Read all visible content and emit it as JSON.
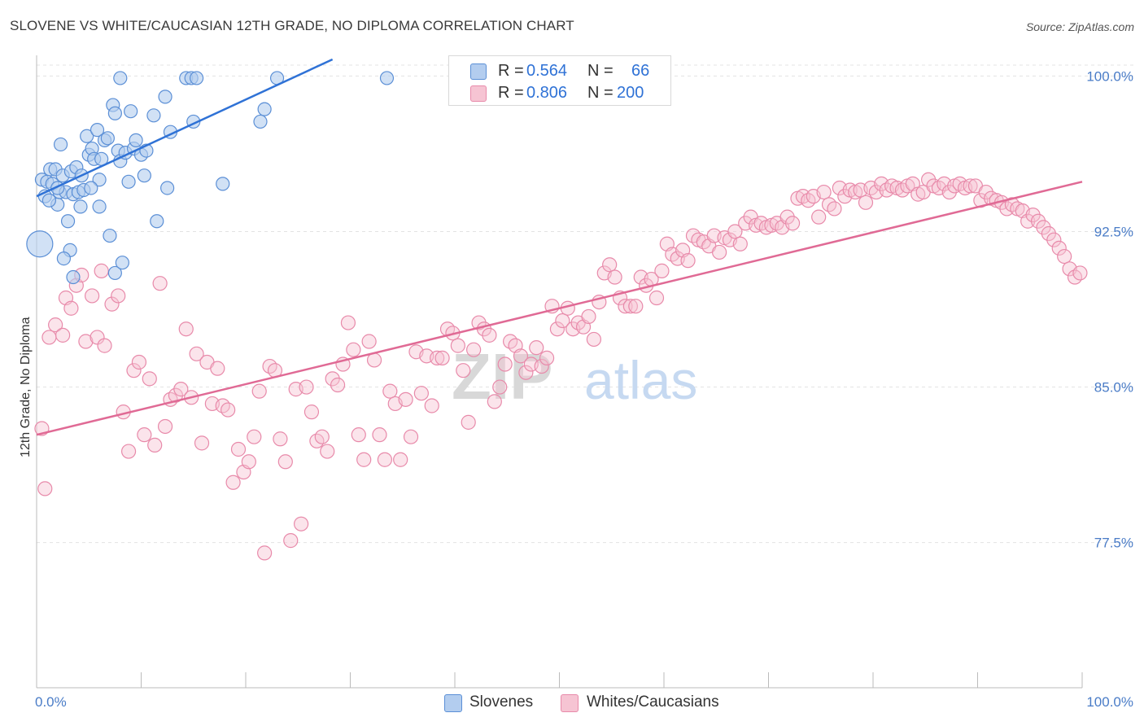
{
  "title": "SLOVENE VS WHITE/CAUCASIAN 12TH GRADE, NO DIPLOMA CORRELATION CHART",
  "source": "Source: ZipAtlas.com",
  "colors": {
    "blue_fill": "#b3cdef",
    "blue_stroke": "#5b8fd6",
    "blue_line": "#2f72d6",
    "pink_fill": "#f6c4d3",
    "pink_stroke": "#e88aaa",
    "pink_line": "#e06a95",
    "tick_label": "#4a7cc7",
    "grid": "#e3e3e3"
  },
  "legend": {
    "row1": {
      "r_label": "R = ",
      "r_value": "0.564",
      "n_label": "N = ",
      "n_value": "66"
    },
    "row2": {
      "r_label": "R = ",
      "r_value": "0.806",
      "n_label": "N = ",
      "n_value": "200"
    }
  },
  "bottom_legend": {
    "series1": "Slovenes",
    "series2": "Whites/Caucasians"
  },
  "watermark": {
    "part1": "ZIP",
    "part2": "atlas"
  },
  "chart_data": {
    "type": "scatter",
    "title": "SLOVENE VS WHITE/CAUCASIAN 12TH GRADE, NO DIPLOMA CORRELATION CHART",
    "xlabel": "",
    "ylabel": "12th Grade, No Diploma",
    "xlim": [
      0,
      100
    ],
    "ylim": [
      70.5,
      100.8
    ],
    "x_tick_labels": [
      "0.0%",
      "100.0%"
    ],
    "y_ticks": [
      77.5,
      85.0,
      92.5,
      100.0
    ],
    "y_tick_labels": [
      "77.5%",
      "85.0%",
      "92.5%",
      "100.0%"
    ],
    "grid": true,
    "legend_position": "top-center",
    "series": [
      {
        "name": "Slovenes",
        "r": 0.564,
        "n": 66,
        "trend": {
          "x": [
            0,
            28.3
          ],
          "y": [
            94.2,
            100.8
          ]
        },
        "points": [
          [
            0.5,
            95.0
          ],
          [
            0.8,
            94.2
          ],
          [
            1.0,
            94.9
          ],
          [
            1.3,
            95.5
          ],
          [
            1.5,
            94.8
          ],
          [
            1.8,
            95.5
          ],
          [
            2.0,
            93.8
          ],
          [
            2.2,
            94.4
          ],
          [
            2.3,
            96.7
          ],
          [
            2.5,
            95.2
          ],
          [
            2.8,
            94.4
          ],
          [
            3.0,
            93.0
          ],
          [
            3.3,
            95.4
          ],
          [
            3.2,
            91.6
          ],
          [
            3.5,
            94.3
          ],
          [
            4.0,
            94.4
          ],
          [
            3.8,
            95.6
          ],
          [
            4.3,
            95.2
          ],
          [
            4.5,
            94.5
          ],
          [
            4.8,
            97.1
          ],
          [
            5.0,
            96.2
          ],
          [
            5.3,
            96.5
          ],
          [
            5.5,
            96.0
          ],
          [
            5.8,
            97.4
          ],
          [
            6.0,
            95.0
          ],
          [
            6.2,
            96.0
          ],
          [
            6.5,
            96.9
          ],
          [
            6.8,
            97.0
          ],
          [
            7.0,
            92.3
          ],
          [
            7.3,
            98.6
          ],
          [
            7.5,
            98.2
          ],
          [
            7.8,
            96.4
          ],
          [
            8.0,
            95.9
          ],
          [
            8.5,
            96.3
          ],
          [
            8.8,
            94.9
          ],
          [
            9.0,
            98.3
          ],
          [
            9.3,
            96.5
          ],
          [
            9.5,
            96.9
          ],
          [
            10.0,
            96.2
          ],
          [
            10.3,
            95.2
          ],
          [
            10.5,
            96.4
          ],
          [
            11.2,
            98.1
          ],
          [
            11.5,
            93.0
          ],
          [
            12.3,
            99.0
          ],
          [
            12.5,
            94.6
          ],
          [
            12.8,
            97.3
          ],
          [
            14.3,
            99.9
          ],
          [
            14.8,
            99.9
          ],
          [
            15.3,
            99.9
          ],
          [
            15.0,
            97.8
          ],
          [
            17.8,
            94.8
          ],
          [
            21.4,
            97.8
          ],
          [
            21.8,
            98.4
          ],
          [
            23.0,
            99.9
          ],
          [
            33.5,
            99.9
          ],
          [
            8.0,
            99.9
          ],
          [
            5.2,
            94.6
          ],
          [
            6.0,
            93.7
          ],
          [
            4.2,
            93.7
          ],
          [
            3.5,
            90.3
          ],
          [
            7.5,
            90.5
          ],
          [
            8.2,
            91.0
          ],
          [
            2.6,
            91.2
          ],
          [
            1.2,
            94.0
          ],
          [
            2.0,
            94.6
          ],
          [
            0.3,
            91.9
          ]
        ]
      },
      {
        "name": "Whites/Caucasians",
        "r": 0.806,
        "n": 200,
        "trend": {
          "x": [
            0,
            100
          ],
          "y": [
            82.7,
            94.9
          ]
        },
        "points": [
          [
            0.5,
            83.0
          ],
          [
            0.8,
            80.1
          ],
          [
            1.2,
            87.4
          ],
          [
            1.8,
            88.0
          ],
          [
            2.5,
            87.5
          ],
          [
            2.8,
            89.3
          ],
          [
            3.3,
            88.8
          ],
          [
            3.8,
            89.9
          ],
          [
            4.3,
            90.4
          ],
          [
            4.7,
            87.2
          ],
          [
            5.3,
            89.4
          ],
          [
            5.8,
            87.4
          ],
          [
            6.2,
            90.6
          ],
          [
            6.5,
            87.0
          ],
          [
            7.2,
            89.0
          ],
          [
            7.8,
            89.4
          ],
          [
            8.3,
            83.8
          ],
          [
            8.8,
            81.9
          ],
          [
            9.3,
            85.8
          ],
          [
            9.8,
            86.2
          ],
          [
            10.3,
            82.7
          ],
          [
            10.8,
            85.4
          ],
          [
            11.3,
            82.2
          ],
          [
            11.8,
            90.0
          ],
          [
            12.3,
            83.1
          ],
          [
            12.8,
            84.4
          ],
          [
            13.3,
            84.6
          ],
          [
            13.8,
            84.9
          ],
          [
            14.3,
            87.8
          ],
          [
            14.8,
            84.5
          ],
          [
            15.3,
            86.6
          ],
          [
            15.8,
            82.3
          ],
          [
            16.3,
            86.2
          ],
          [
            16.8,
            84.2
          ],
          [
            17.3,
            85.9
          ],
          [
            17.8,
            84.1
          ],
          [
            18.3,
            83.9
          ],
          [
            18.8,
            80.4
          ],
          [
            19.3,
            82.0
          ],
          [
            19.8,
            80.9
          ],
          [
            20.3,
            81.4
          ],
          [
            20.8,
            82.6
          ],
          [
            21.3,
            84.8
          ],
          [
            21.8,
            77.0
          ],
          [
            22.3,
            86.0
          ],
          [
            22.8,
            85.8
          ],
          [
            23.3,
            82.5
          ],
          [
            23.8,
            81.4
          ],
          [
            24.3,
            77.6
          ],
          [
            24.8,
            84.9
          ],
          [
            25.3,
            78.4
          ],
          [
            25.8,
            85.0
          ],
          [
            26.3,
            83.8
          ],
          [
            26.8,
            82.4
          ],
          [
            27.3,
            82.6
          ],
          [
            27.8,
            81.9
          ],
          [
            28.3,
            85.4
          ],
          [
            28.8,
            85.1
          ],
          [
            29.3,
            86.1
          ],
          [
            29.8,
            88.1
          ],
          [
            30.3,
            86.8
          ],
          [
            30.8,
            82.7
          ],
          [
            31.3,
            81.5
          ],
          [
            31.8,
            87.2
          ],
          [
            32.3,
            86.3
          ],
          [
            32.8,
            82.7
          ],
          [
            33.3,
            81.5
          ],
          [
            33.8,
            84.8
          ],
          [
            34.3,
            84.2
          ],
          [
            34.8,
            81.5
          ],
          [
            35.3,
            84.4
          ],
          [
            35.8,
            82.6
          ],
          [
            36.3,
            86.7
          ],
          [
            36.8,
            84.7
          ],
          [
            37.3,
            86.5
          ],
          [
            37.8,
            84.1
          ],
          [
            38.3,
            86.4
          ],
          [
            38.8,
            86.4
          ],
          [
            39.3,
            87.8
          ],
          [
            39.8,
            87.6
          ],
          [
            40.3,
            87.0
          ],
          [
            40.8,
            85.8
          ],
          [
            41.3,
            83.3
          ],
          [
            41.8,
            86.8
          ],
          [
            42.3,
            88.1
          ],
          [
            42.8,
            87.8
          ],
          [
            43.3,
            87.5
          ],
          [
            43.8,
            84.3
          ],
          [
            44.3,
            85.0
          ],
          [
            44.8,
            86.1
          ],
          [
            45.3,
            87.2
          ],
          [
            45.8,
            87.0
          ],
          [
            46.3,
            86.5
          ],
          [
            46.8,
            85.7
          ],
          [
            47.3,
            86.1
          ],
          [
            47.8,
            86.9
          ],
          [
            48.3,
            86.0
          ],
          [
            48.8,
            86.4
          ],
          [
            49.3,
            88.9
          ],
          [
            49.8,
            87.8
          ],
          [
            50.3,
            88.2
          ],
          [
            50.8,
            88.8
          ],
          [
            51.3,
            87.8
          ],
          [
            51.8,
            88.1
          ],
          [
            52.3,
            87.9
          ],
          [
            52.8,
            88.4
          ],
          [
            53.3,
            87.3
          ],
          [
            53.8,
            89.1
          ],
          [
            54.3,
            90.5
          ],
          [
            54.8,
            90.9
          ],
          [
            55.3,
            90.3
          ],
          [
            55.8,
            89.3
          ],
          [
            56.3,
            88.9
          ],
          [
            56.8,
            88.9
          ],
          [
            57.3,
            88.9
          ],
          [
            57.8,
            90.3
          ],
          [
            58.3,
            89.9
          ],
          [
            58.8,
            90.2
          ],
          [
            59.3,
            89.3
          ],
          [
            59.8,
            90.6
          ],
          [
            60.3,
            91.9
          ],
          [
            60.8,
            91.4
          ],
          [
            61.3,
            91.2
          ],
          [
            61.8,
            91.6
          ],
          [
            62.3,
            91.1
          ],
          [
            62.8,
            92.3
          ],
          [
            63.3,
            92.1
          ],
          [
            63.8,
            92.0
          ],
          [
            64.3,
            91.8
          ],
          [
            64.8,
            92.3
          ],
          [
            65.3,
            91.5
          ],
          [
            65.8,
            92.2
          ],
          [
            66.3,
            92.1
          ],
          [
            66.8,
            92.5
          ],
          [
            67.3,
            91.9
          ],
          [
            67.8,
            92.9
          ],
          [
            68.3,
            93.2
          ],
          [
            68.8,
            92.8
          ],
          [
            69.3,
            92.9
          ],
          [
            69.8,
            92.7
          ],
          [
            70.3,
            92.8
          ],
          [
            70.8,
            92.9
          ],
          [
            71.3,
            92.7
          ],
          [
            71.8,
            93.2
          ],
          [
            72.3,
            92.9
          ],
          [
            72.8,
            94.1
          ],
          [
            73.3,
            94.2
          ],
          [
            73.8,
            94.0
          ],
          [
            74.3,
            94.2
          ],
          [
            74.8,
            93.2
          ],
          [
            75.3,
            94.4
          ],
          [
            75.8,
            93.8
          ],
          [
            76.3,
            93.6
          ],
          [
            76.8,
            94.6
          ],
          [
            77.3,
            94.2
          ],
          [
            77.8,
            94.5
          ],
          [
            78.3,
            94.4
          ],
          [
            78.8,
            94.5
          ],
          [
            79.3,
            93.9
          ],
          [
            79.8,
            94.6
          ],
          [
            80.3,
            94.4
          ],
          [
            80.8,
            94.8
          ],
          [
            81.3,
            94.5
          ],
          [
            81.8,
            94.7
          ],
          [
            82.3,
            94.6
          ],
          [
            82.8,
            94.5
          ],
          [
            83.3,
            94.7
          ],
          [
            83.8,
            94.8
          ],
          [
            84.3,
            94.3
          ],
          [
            84.8,
            94.4
          ],
          [
            85.3,
            95.0
          ],
          [
            85.8,
            94.7
          ],
          [
            86.3,
            94.6
          ],
          [
            86.8,
            94.8
          ],
          [
            87.3,
            94.4
          ],
          [
            87.8,
            94.7
          ],
          [
            88.3,
            94.8
          ],
          [
            88.8,
            94.6
          ],
          [
            89.3,
            94.7
          ],
          [
            89.8,
            94.7
          ],
          [
            90.3,
            94.0
          ],
          [
            90.8,
            94.4
          ],
          [
            91.3,
            94.1
          ],
          [
            91.8,
            94.0
          ],
          [
            92.3,
            93.9
          ],
          [
            92.8,
            93.6
          ],
          [
            93.3,
            93.8
          ],
          [
            93.8,
            93.6
          ],
          [
            94.3,
            93.5
          ],
          [
            94.8,
            93.0
          ],
          [
            95.3,
            93.3
          ],
          [
            95.8,
            93.0
          ],
          [
            96.3,
            92.7
          ],
          [
            96.8,
            92.4
          ],
          [
            97.3,
            92.1
          ],
          [
            97.8,
            91.7
          ],
          [
            98.3,
            91.3
          ],
          [
            98.8,
            90.7
          ],
          [
            99.3,
            90.3
          ],
          [
            99.8,
            90.5
          ]
        ]
      }
    ]
  }
}
